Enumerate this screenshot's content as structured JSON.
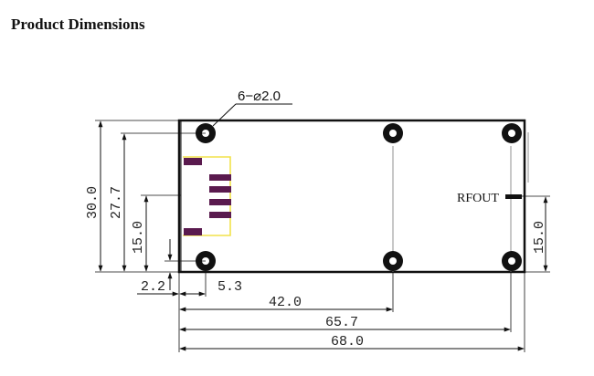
{
  "page_title": "Product Dimensions",
  "hole_callout": "6−⌀2.0",
  "port_label": "RFOUT",
  "dimensions": {
    "height_total": "30.0",
    "height_holes": "27.7",
    "height_connector": "15.0",
    "height_rfout": "15.0",
    "hole_offset_x": "2.2",
    "connector_offset_x": "5.3",
    "width_mid_hole": "42.0",
    "width_holes": "65.7",
    "width_total": "68.0"
  },
  "colors": {
    "outline": "#111111",
    "pad": "#5a1a4e",
    "connector_outline": "#f2e24a"
  }
}
